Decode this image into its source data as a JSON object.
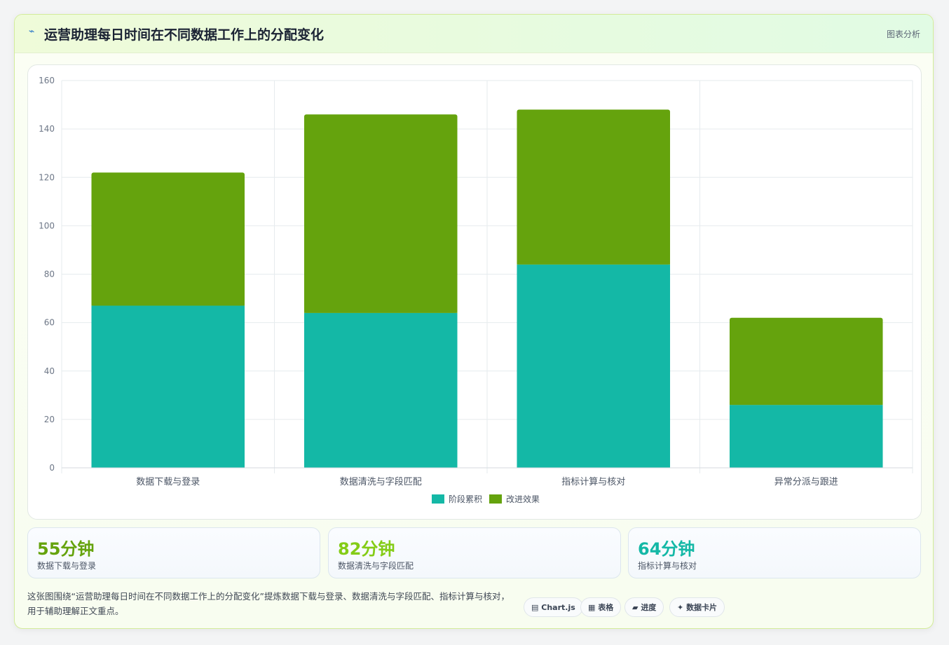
{
  "header": {
    "icon": "sparkline-icon",
    "icon_glyph": "⌁",
    "title": "运营助理每日时间在不同数据工作上的分配变化",
    "tag": "图表分析"
  },
  "chart_data": {
    "type": "bar",
    "stacked": true,
    "categories": [
      "数据下载与登录",
      "数据清洗与字段匹配",
      "指标计算与核对",
      "异常分派与跟进"
    ],
    "series": [
      {
        "name": "阶段累积",
        "color": "#14b8a6",
        "values": [
          67,
          64,
          84,
          26
        ]
      },
      {
        "name": "改进效果",
        "color": "#65a30d",
        "values": [
          55,
          82,
          64,
          36
        ]
      }
    ],
    "title": "",
    "xlabel": "",
    "ylabel": "",
    "ylim": [
      0,
      160
    ],
    "yticks": [
      0,
      20,
      40,
      60,
      80,
      100,
      120,
      140,
      160
    ],
    "grid": true,
    "legend": "bottom"
  },
  "stats": [
    {
      "value": "55分钟",
      "label": "数据下载与登录",
      "color": "#65a30d"
    },
    {
      "value": "82分钟",
      "label": "数据清洗与字段匹配",
      "color": "#84cc16"
    },
    {
      "value": "64分钟",
      "label": "指标计算与核对",
      "color": "#14b8a6"
    }
  ],
  "description": "这张图围绕“运营助理每日时间在不同数据工作上的分配变化”提炼数据下载与登录、数据清洗与字段匹配、指标计算与核对，用于辅助理解正文重点。",
  "pills": [
    {
      "icon": "chart-icon",
      "glyph": "▤",
      "label": "Chart.js"
    },
    {
      "icon": "table-icon",
      "glyph": "▦",
      "label": "表格"
    },
    {
      "icon": "progress-icon",
      "glyph": "▰",
      "label": "进度"
    },
    {
      "icon": "data-card-icon",
      "glyph": "✦",
      "label": "数据卡片"
    }
  ]
}
